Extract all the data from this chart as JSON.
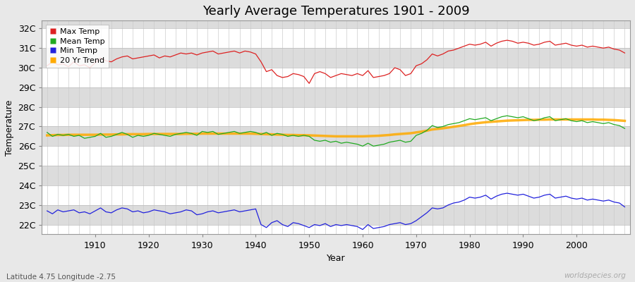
{
  "title": "Yearly Average Temperatures 1901 - 2009",
  "xlabel": "Year",
  "ylabel": "Temperature",
  "years": [
    1901,
    1902,
    1903,
    1904,
    1905,
    1906,
    1907,
    1908,
    1909,
    1910,
    1911,
    1912,
    1913,
    1914,
    1915,
    1916,
    1917,
    1918,
    1919,
    1920,
    1921,
    1922,
    1923,
    1924,
    1925,
    1926,
    1927,
    1928,
    1929,
    1930,
    1931,
    1932,
    1933,
    1934,
    1935,
    1936,
    1937,
    1938,
    1939,
    1940,
    1941,
    1942,
    1943,
    1944,
    1945,
    1946,
    1947,
    1948,
    1949,
    1950,
    1951,
    1952,
    1953,
    1954,
    1955,
    1956,
    1957,
    1958,
    1959,
    1960,
    1961,
    1962,
    1963,
    1964,
    1965,
    1966,
    1967,
    1968,
    1969,
    1970,
    1971,
    1972,
    1973,
    1974,
    1975,
    1976,
    1977,
    1978,
    1979,
    1980,
    1981,
    1982,
    1983,
    1984,
    1985,
    1986,
    1987,
    1988,
    1989,
    1990,
    1991,
    1992,
    1993,
    1994,
    1995,
    1996,
    1997,
    1998,
    1999,
    2000,
    2001,
    2002,
    2003,
    2004,
    2005,
    2006,
    2007,
    2008,
    2009
  ],
  "max_temp": [
    30.1,
    30.3,
    30.15,
    30.2,
    30.05,
    30.3,
    30.1,
    30.15,
    30.0,
    30.25,
    30.5,
    30.35,
    30.3,
    30.45,
    30.55,
    30.6,
    30.45,
    30.5,
    30.55,
    30.6,
    30.65,
    30.5,
    30.6,
    30.55,
    30.65,
    30.75,
    30.7,
    30.75,
    30.65,
    30.75,
    30.8,
    30.85,
    30.7,
    30.75,
    30.8,
    30.85,
    30.75,
    30.85,
    30.8,
    30.7,
    30.3,
    29.8,
    29.9,
    29.6,
    29.5,
    29.55,
    29.7,
    29.65,
    29.55,
    29.2,
    29.7,
    29.8,
    29.7,
    29.5,
    29.6,
    29.7,
    29.65,
    29.6,
    29.7,
    29.6,
    29.85,
    29.5,
    29.55,
    29.6,
    29.7,
    30.0,
    29.9,
    29.6,
    29.7,
    30.1,
    30.2,
    30.4,
    30.7,
    30.6,
    30.7,
    30.85,
    30.9,
    31.0,
    31.1,
    31.2,
    31.15,
    31.2,
    31.3,
    31.1,
    31.25,
    31.35,
    31.4,
    31.35,
    31.25,
    31.3,
    31.25,
    31.15,
    31.2,
    31.3,
    31.35,
    31.15,
    31.2,
    31.25,
    31.15,
    31.1,
    31.15,
    31.05,
    31.1,
    31.05,
    31.0,
    31.05,
    30.95,
    30.9,
    30.75
  ],
  "mean_temp": [
    26.7,
    26.5,
    26.6,
    26.55,
    26.6,
    26.5,
    26.55,
    26.4,
    26.45,
    26.5,
    26.65,
    26.45,
    26.5,
    26.6,
    26.7,
    26.6,
    26.45,
    26.55,
    26.5,
    26.55,
    26.65,
    26.6,
    26.55,
    26.5,
    26.6,
    26.65,
    26.7,
    26.65,
    26.55,
    26.75,
    26.7,
    26.75,
    26.6,
    26.65,
    26.7,
    26.75,
    26.65,
    26.7,
    26.75,
    26.7,
    26.6,
    26.7,
    26.55,
    26.65,
    26.6,
    26.5,
    26.55,
    26.5,
    26.55,
    26.5,
    26.3,
    26.25,
    26.3,
    26.2,
    26.25,
    26.15,
    26.2,
    26.15,
    26.1,
    26.0,
    26.15,
    26.0,
    26.05,
    26.1,
    26.2,
    26.25,
    26.3,
    26.2,
    26.25,
    26.55,
    26.65,
    26.8,
    27.05,
    26.95,
    27.0,
    27.1,
    27.15,
    27.2,
    27.3,
    27.4,
    27.35,
    27.4,
    27.45,
    27.3,
    27.4,
    27.5,
    27.55,
    27.5,
    27.45,
    27.5,
    27.4,
    27.3,
    27.35,
    27.45,
    27.5,
    27.3,
    27.35,
    27.4,
    27.3,
    27.25,
    27.3,
    27.2,
    27.25,
    27.2,
    27.15,
    27.2,
    27.1,
    27.05,
    26.9
  ],
  "min_temp": [
    22.7,
    22.55,
    22.75,
    22.65,
    22.7,
    22.75,
    22.6,
    22.65,
    22.55,
    22.7,
    22.85,
    22.65,
    22.6,
    22.75,
    22.85,
    22.8,
    22.65,
    22.7,
    22.6,
    22.65,
    22.75,
    22.7,
    22.65,
    22.55,
    22.6,
    22.65,
    22.75,
    22.7,
    22.5,
    22.55,
    22.65,
    22.7,
    22.6,
    22.65,
    22.7,
    22.75,
    22.65,
    22.7,
    22.75,
    22.8,
    22.0,
    21.85,
    22.1,
    22.2,
    22.0,
    21.9,
    22.1,
    22.05,
    21.95,
    21.85,
    22.0,
    21.95,
    22.05,
    21.9,
    22.0,
    21.95,
    22.0,
    21.95,
    21.9,
    21.75,
    22.0,
    21.8,
    21.85,
    21.9,
    22.0,
    22.05,
    22.1,
    22.0,
    22.05,
    22.2,
    22.4,
    22.6,
    22.85,
    22.8,
    22.85,
    23.0,
    23.1,
    23.15,
    23.25,
    23.4,
    23.35,
    23.4,
    23.5,
    23.3,
    23.45,
    23.55,
    23.6,
    23.55,
    23.5,
    23.55,
    23.45,
    23.35,
    23.4,
    23.5,
    23.55,
    23.35,
    23.4,
    23.45,
    23.35,
    23.3,
    23.35,
    23.25,
    23.3,
    23.25,
    23.2,
    23.25,
    23.15,
    23.1,
    22.9
  ],
  "trend": [
    26.55,
    26.56,
    26.57,
    26.57,
    26.58,
    26.58,
    26.58,
    26.58,
    26.58,
    26.58,
    26.59,
    26.59,
    26.59,
    26.6,
    26.6,
    26.61,
    26.61,
    26.61,
    26.61,
    26.62,
    26.62,
    26.62,
    26.62,
    26.62,
    26.62,
    26.62,
    26.63,
    26.63,
    26.63,
    26.64,
    26.64,
    26.64,
    26.64,
    26.64,
    26.64,
    26.64,
    26.64,
    26.64,
    26.64,
    26.63,
    26.62,
    26.61,
    26.6,
    26.59,
    26.58,
    26.57,
    26.57,
    26.56,
    26.56,
    26.55,
    26.54,
    26.53,
    26.52,
    26.51,
    26.5,
    26.5,
    26.5,
    26.5,
    26.5,
    26.5,
    26.51,
    26.52,
    26.53,
    26.55,
    26.57,
    26.6,
    26.62,
    26.64,
    26.66,
    26.7,
    26.74,
    26.79,
    26.85,
    26.88,
    26.91,
    26.95,
    26.99,
    27.03,
    27.07,
    27.12,
    27.16,
    27.19,
    27.22,
    27.24,
    27.26,
    27.28,
    27.3,
    27.31,
    27.32,
    27.33,
    27.34,
    27.34,
    27.35,
    27.35,
    27.36,
    27.36,
    27.36,
    27.36,
    27.36,
    27.36,
    27.36,
    27.36,
    27.36,
    27.35,
    27.35,
    27.34,
    27.33,
    27.31,
    27.29
  ],
  "ylim": [
    21.5,
    32.4
  ],
  "yticks": [
    22,
    23,
    24,
    25,
    26,
    27,
    28,
    29,
    30,
    31,
    32
  ],
  "ytick_labels": [
    "22C",
    "23C",
    "24C",
    "25C",
    "26C",
    "27C",
    "28C",
    "29C",
    "30C",
    "31C",
    "32C"
  ],
  "max_color": "#dd2222",
  "mean_color": "#22aa22",
  "min_color": "#2222dd",
  "trend_color": "#ffaa00",
  "bg_color": "#e8e8e8",
  "band_colors": [
    "#ffffff",
    "#dcdcdc"
  ],
  "grid_color": "#c8c8c8",
  "title_fontsize": 13,
  "axis_fontsize": 9,
  "legend_fontsize": 8,
  "watermark": "worldspecies.org",
  "footnote": "Latitude 4.75 Longitude -2.75"
}
